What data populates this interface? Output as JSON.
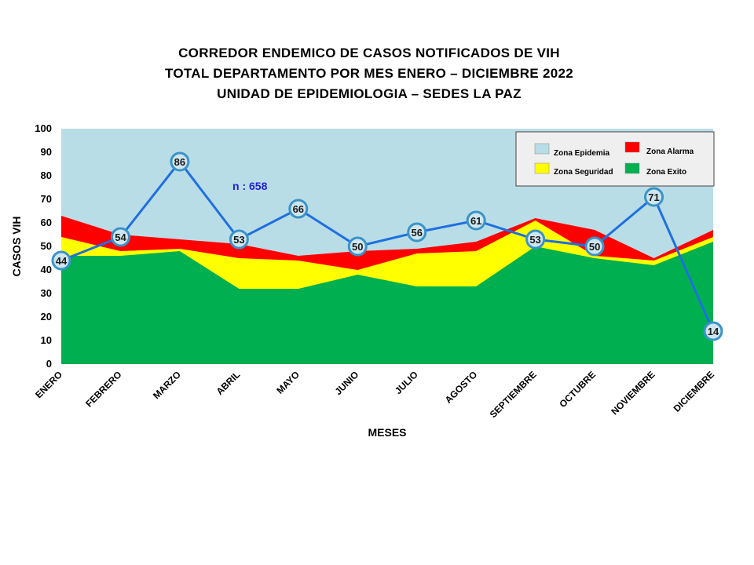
{
  "title_lines": [
    "CORREDOR ENDEMICO  DE CASOS NOTIFICADOS  DE VIH",
    "TOTAL DEPARTAMENTO  POR MES ENERO – DICIEMBRE  2022",
    "UNIDAD  DE EPIDEMIOLOGIA  – SEDES LA PAZ"
  ],
  "chart_data": {
    "type": "area",
    "categories": [
      "ENERO",
      "FEBRERO",
      "MARZO",
      "ABRIL",
      "MAYO",
      "JUNIO",
      "JULIO",
      "AGOSTO",
      "SEPTIEMBRE",
      "OCTUBRE",
      "NOVIEMBRE",
      "DICIEMBRE"
    ],
    "xlabel": "MESES",
    "ylabel": "CASOS VIH",
    "ylim": [
      0,
      100
    ],
    "yticks": [
      0,
      10,
      20,
      30,
      40,
      50,
      60,
      70,
      80,
      90,
      100
    ],
    "annotation": "n : 658",
    "legend_position": "top-right",
    "grid": false,
    "zones": [
      {
        "name": "Zona Epidemia",
        "color": "#b9dde7",
        "upper": [
          100,
          100,
          100,
          100,
          100,
          100,
          100,
          100,
          100,
          100,
          100,
          100
        ]
      },
      {
        "name": "Zona Alarma",
        "color": "#ff0000",
        "upper": [
          63,
          55,
          53,
          51,
          46,
          48,
          49,
          52,
          62,
          57,
          45,
          57
        ]
      },
      {
        "name": "Zona Seguridad",
        "color": "#ffff00",
        "upper": [
          54,
          48,
          49,
          45,
          44,
          40,
          47,
          48,
          61,
          46,
          44,
          54
        ]
      },
      {
        "name": "Zona Exito",
        "color": "#00b050",
        "upper": [
          46,
          46,
          48,
          32,
          32,
          38,
          33,
          33,
          50,
          45,
          42,
          52
        ]
      }
    ],
    "series": [
      {
        "values": [
          44,
          54,
          86,
          53,
          66,
          50,
          56,
          61,
          53,
          50,
          71,
          14
        ],
        "color": "#1f6fe0"
      }
    ]
  }
}
